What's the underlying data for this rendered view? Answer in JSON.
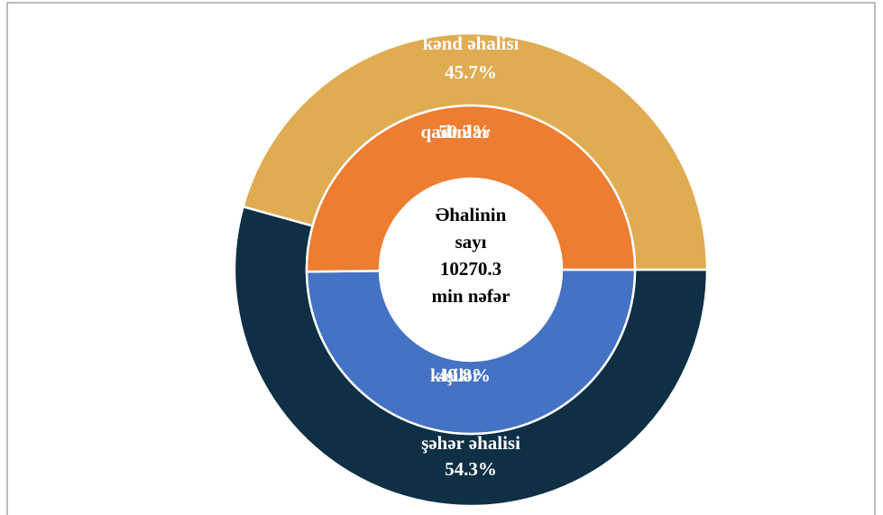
{
  "chart_data": {
    "type": "donut",
    "rings": [
      {
        "categories": [
          "şəhər əhalisi",
          "kənd əhalisi"
        ],
        "values": [
          54.3,
          45.7
        ],
        "value_labels": [
          "54.3%",
          "45.7%"
        ],
        "colors": [
          "#0e2f44",
          "#e0ac52"
        ]
      },
      {
        "categories": [
          "kişilər",
          "qadınlar"
        ],
        "values": [
          49.8,
          50.2
        ],
        "value_labels": [
          "49.8%",
          "50.2%"
        ],
        "colors": [
          "#4472c4",
          "#ed7d31"
        ]
      }
    ],
    "center_label": [
      "Əhalinin",
      "sayı"
    ],
    "center_value": 10270.3,
    "center_unit": "min nəfər"
  }
}
